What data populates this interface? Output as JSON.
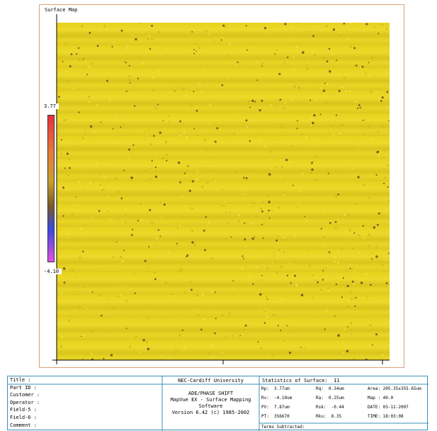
{
  "panel": {
    "title": "Surface Map",
    "scale_max": "3.77",
    "scale_min": "-4.10"
  },
  "info": {
    "labels": [
      "Title :",
      "Part ID :",
      "Customer :",
      "Operator :",
      "Field-5 :",
      "Field-6 :",
      "Comment :"
    ],
    "organization": "NEC-Cardiff University",
    "software": [
      "ADE/PHASE SHIFT",
      "MapVue EX - Surface Mapping Software",
      "Version 6.42 (c) 1985-2002"
    ],
    "stats_title": "Statistics of Surface:  11",
    "stats": [
      [
        "Rp:  3.77um",
        "Rq:  0.34um",
        "Area: 205.35x355.65um"
      ],
      [
        "Rv:  -4.10um",
        "Ra:  0.25um",
        "Map : 40.0"
      ],
      [
        "PV:  7.87um",
        "Rsk:  -0.44",
        "DATE: 03-12-2007"
      ],
      [
        "PT:  356670",
        "Rku:  8.35",
        "TIME: 18:03:08"
      ]
    ],
    "terms": "Terms Subtracted:"
  }
}
